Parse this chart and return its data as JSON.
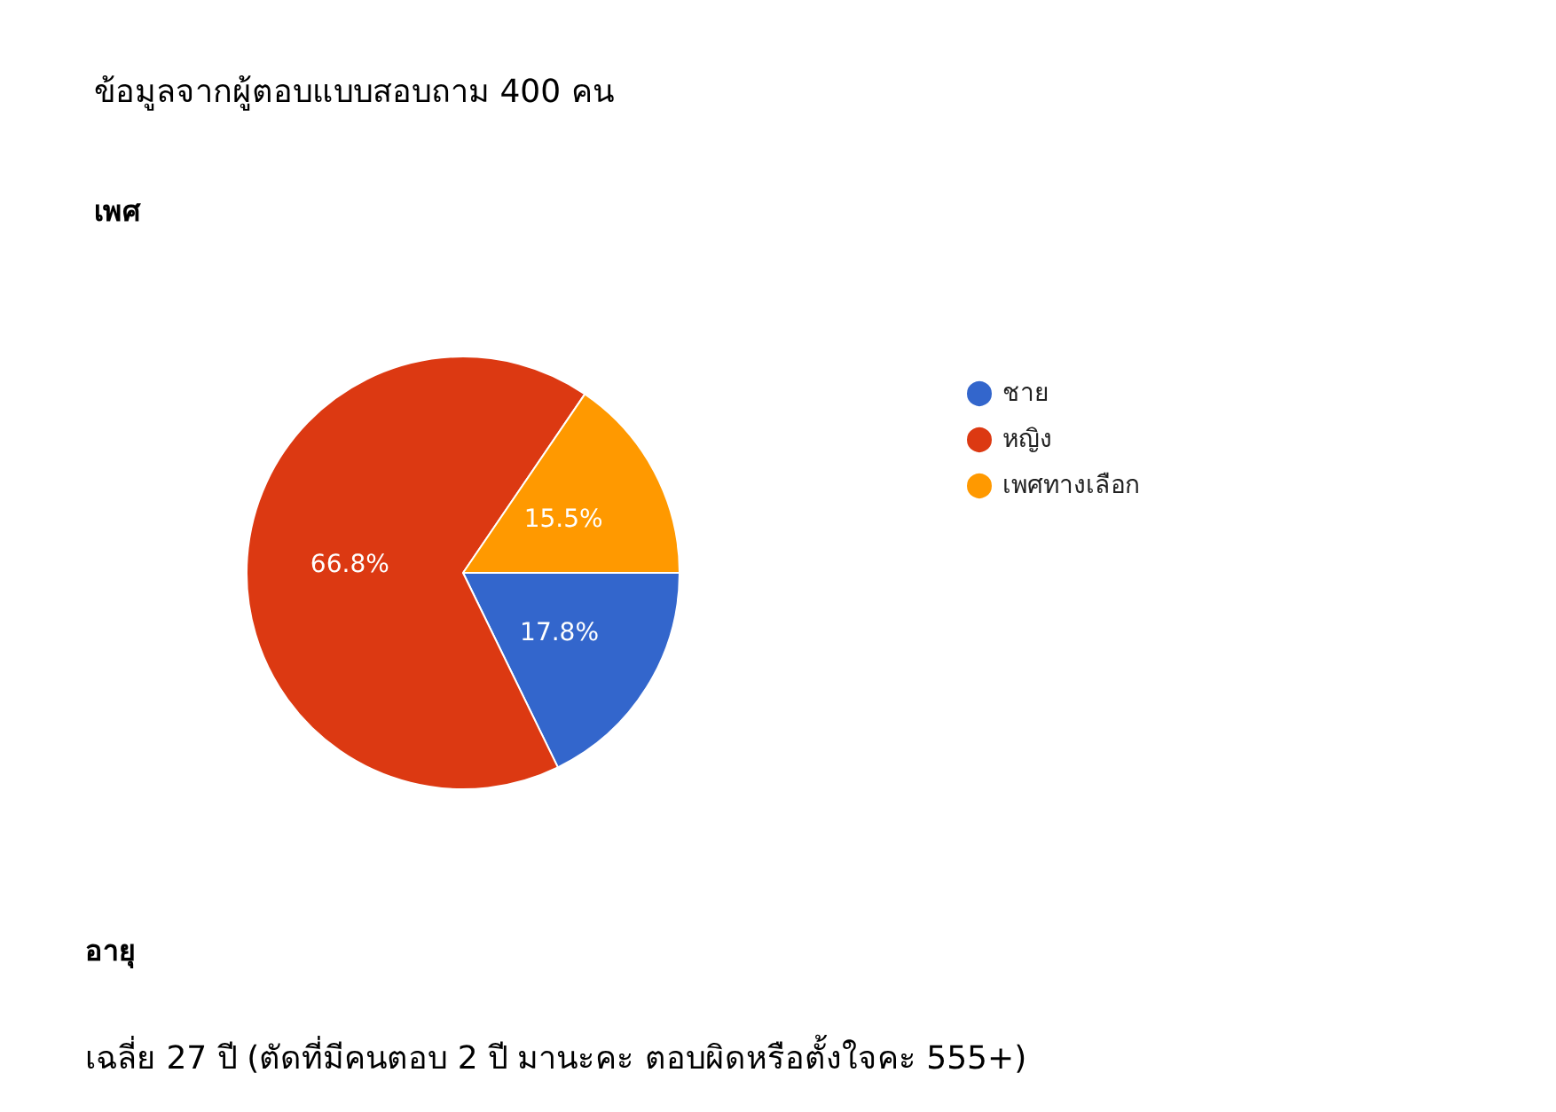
{
  "chart_data": {
    "type": "pie",
    "title": "ข้อมูลจากผู้ตอบแบบสอบถาม 400 คน",
    "subtitle": "เพศ",
    "categories": [
      "ชาย",
      "หญิง",
      "เพศทางเลือก"
    ],
    "values": [
      17.8,
      66.8,
      15.5
    ],
    "colors": [
      "#3366cc",
      "#dc3912",
      "#ff9900"
    ],
    "value_labels": [
      "17.8%",
      "66.8%",
      "15.5%"
    ],
    "legend": "right",
    "annotations": [
      "อายุ",
      "เฉลี่ย 27 ปี (ตัดที่มีคนตอบ 2 ปี มานะคะ ตอบผิดหรือตั้งใจคะ 555+)"
    ]
  }
}
